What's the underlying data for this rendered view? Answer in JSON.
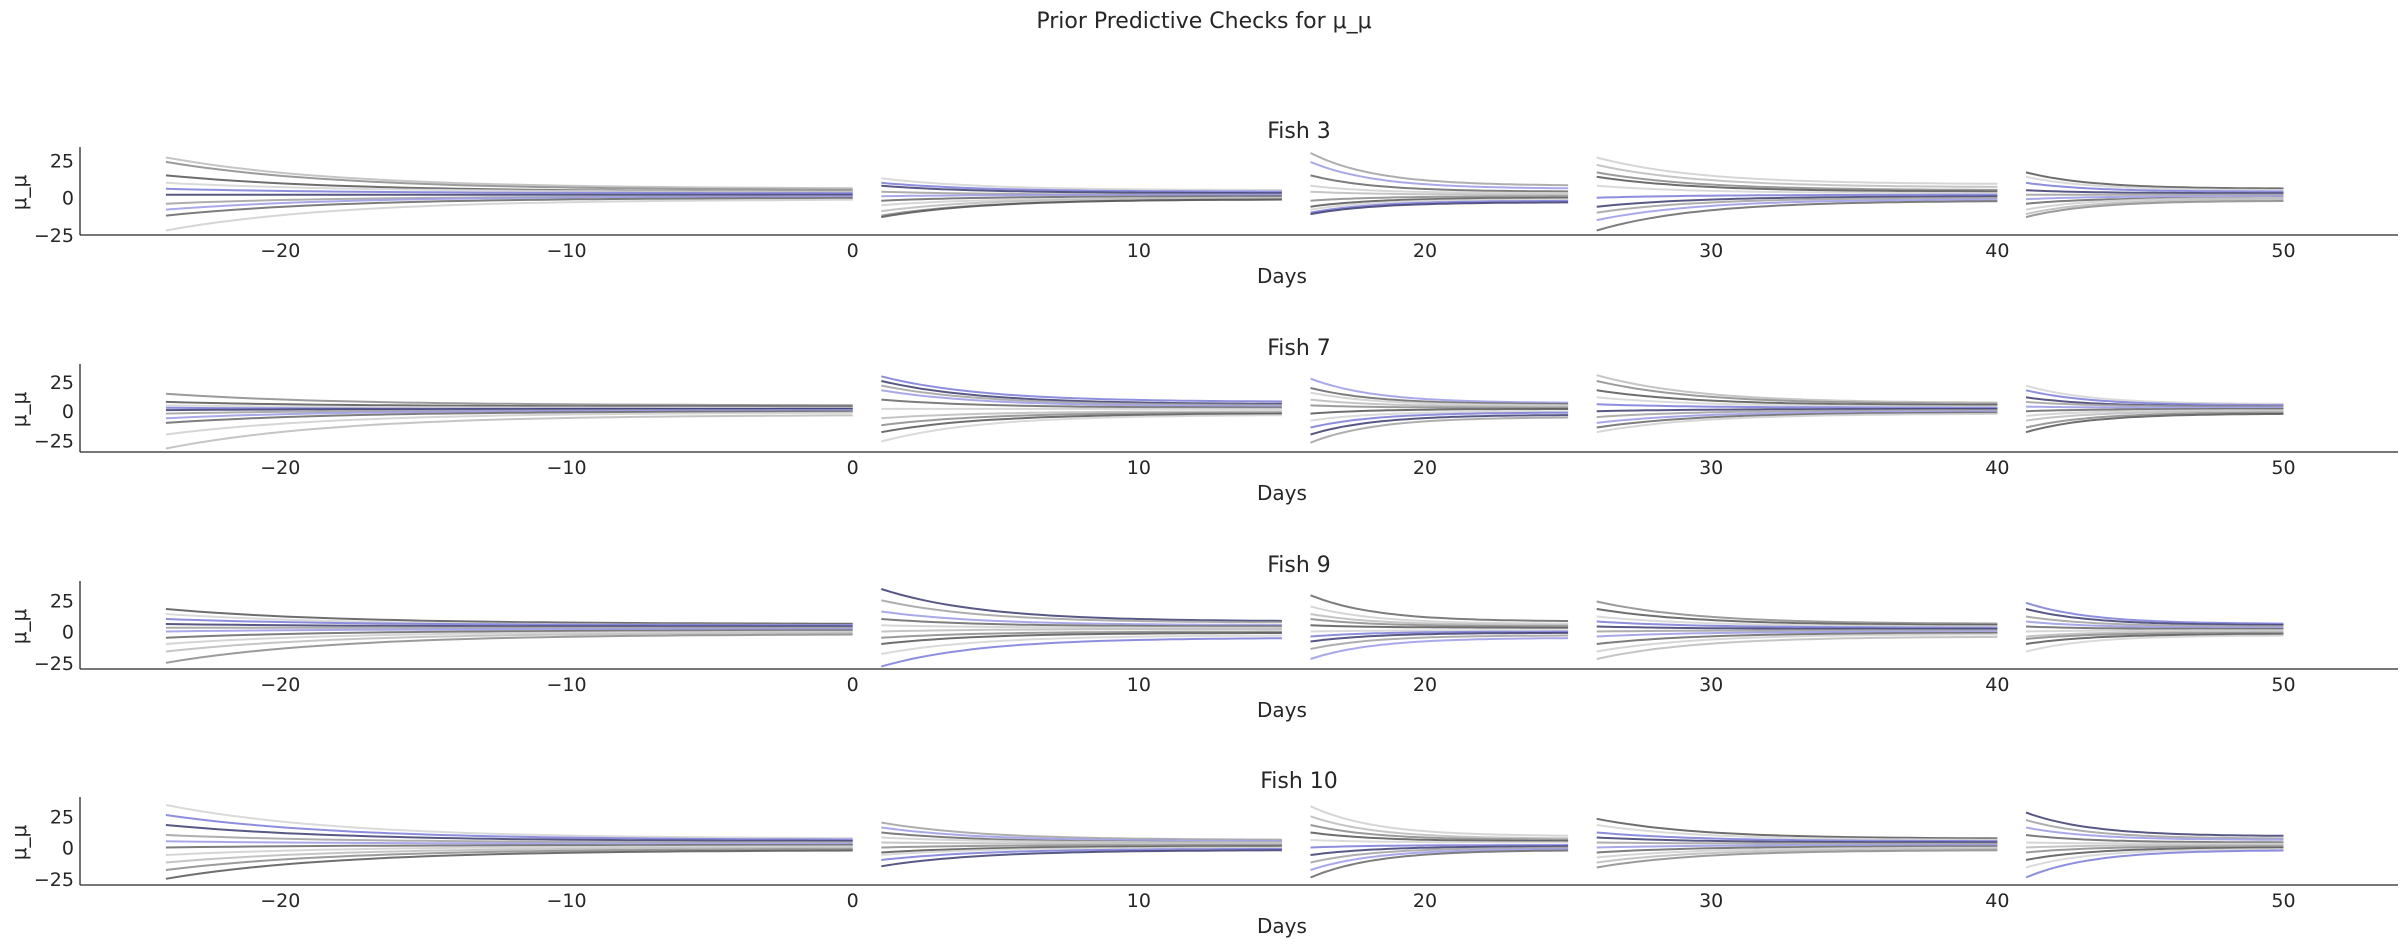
{
  "chart_data": {
    "type": "line",
    "title": "Prior Predictive Checks for μ_μ",
    "xlabel": "Days",
    "ylabel": "μ_μ",
    "xlim": [
      -27,
      54
    ],
    "x_ticks": [
      "−20",
      "−10",
      "0",
      "10",
      "20",
      "30",
      "40",
      "50"
    ],
    "x_tick_values": [
      -20,
      -10,
      0,
      10,
      20,
      30,
      40,
      50
    ],
    "segments": [
      [
        -24,
        0
      ],
      [
        1,
        15
      ],
      [
        16,
        25
      ],
      [
        26,
        40
      ],
      [
        41,
        50
      ]
    ],
    "grid": false,
    "line_colors": [
      "#bbbbbb",
      "#8a8a8a",
      "#555555",
      "#d4d4d4",
      "#7a7ad8",
      "#3b3b6e",
      "#a0a0a0",
      "#9a9ae6",
      "#666666",
      "#cfcfcf"
    ],
    "panels": [
      {
        "title": "Fish 3",
        "ylim": [
          -25,
          32
        ],
        "y_ticks": [
          "25",
          "0",
          "−25"
        ],
        "y_tick_values": [
          25,
          0,
          -25
        ],
        "segments": [
          {
            "start": [
              27,
              24,
              15,
              10,
              6,
              2,
              -4,
              -8,
              -12,
              -22
            ],
            "end": [
              6,
              5,
              4,
              4,
              3,
              2,
              1,
              1,
              0,
              -1
            ]
          },
          {
            "start": [
              13,
              10,
              8,
              4,
              1,
              -2,
              -5,
              -9,
              -12,
              -13
            ],
            "end": [
              5,
              4,
              3,
              2,
              2,
              1,
              0,
              0,
              -1,
              -1
            ]
          },
          {
            "start": [
              30,
              24,
              15,
              8,
              4,
              -2,
              -6,
              -8,
              -10,
              -11
            ],
            "end": [
              8,
              6,
              4,
              3,
              2,
              1,
              0,
              -1,
              -2,
              -3
            ]
          },
          {
            "start": [
              27,
              22,
              17,
              14,
              8,
              0,
              -6,
              -10,
              -15,
              -22
            ],
            "end": [
              9,
              7,
              5,
              4,
              3,
              2,
              1,
              0,
              -1,
              -2
            ]
          },
          {
            "start": [
              17,
              14,
              10,
              5,
              2,
              -1,
              -4,
              -8,
              -11,
              -13
            ],
            "end": [
              6,
              5,
              4,
              3,
              2,
              1,
              0,
              0,
              -1,
              -2
            ]
          }
        ]
      },
      {
        "title": "Fish 7",
        "ylim": [
          -35,
          38
        ],
        "y_ticks": [
          "25",
          "0",
          "−25"
        ],
        "y_tick_values": [
          25,
          0,
          -25
        ],
        "segments": [
          {
            "start": [
              15,
              8,
              5,
              3,
              1,
              -2,
              -6,
              -10,
              -20,
              -32
            ],
            "end": [
              5,
              4,
              3,
              2,
              2,
              1,
              1,
              0,
              -1,
              -3
            ]
          },
          {
            "start": [
              30,
              26,
              22,
              18,
              10,
              2,
              -6,
              -12,
              -18,
              -26
            ],
            "end": [
              8,
              6,
              5,
              4,
              3,
              2,
              0,
              -1,
              -2,
              -3
            ]
          },
          {
            "start": [
              28,
              20,
              16,
              10,
              5,
              -2,
              -8,
              -14,
              -20,
              -27
            ],
            "end": [
              7,
              6,
              5,
              4,
              3,
              2,
              0,
              -1,
              -3,
              -5
            ]
          },
          {
            "start": [
              31,
              26,
              18,
              12,
              6,
              0,
              -5,
              -10,
              -14,
              -18
            ],
            "end": [
              7,
              6,
              5,
              4,
              3,
              2,
              1,
              0,
              -1,
              -2
            ]
          },
          {
            "start": [
              22,
              18,
              12,
              8,
              4,
              0,
              -4,
              -8,
              -14,
              -18
            ],
            "end": [
              6,
              5,
              4,
              4,
              3,
              2,
              1,
              0,
              -1,
              -2
            ]
          }
        ]
      },
      {
        "title": "Fish 9",
        "ylim": [
          -30,
          38
        ],
        "y_ticks": [
          "25",
          "0",
          "−25"
        ],
        "y_tick_values": [
          25,
          0,
          -25
        ],
        "segments": [
          {
            "start": [
              18,
              14,
              10,
              6,
              3,
              0,
              -5,
              -10,
              -16,
              -25
            ],
            "end": [
              6,
              5,
              5,
              4,
              3,
              2,
              1,
              0,
              -1,
              -2
            ]
          },
          {
            "start": [
              34,
              25,
              16,
              10,
              5,
              0,
              -5,
              -10,
              -18,
              -28
            ],
            "end": [
              8,
              7,
              5,
              4,
              3,
              2,
              0,
              -1,
              -3,
              -5
            ]
          },
          {
            "start": [
              29,
              20,
              14,
              10,
              5,
              0,
              -4,
              -8,
              -14,
              -22
            ],
            "end": [
              8,
              6,
              5,
              4,
              3,
              1,
              0,
              -1,
              -3,
              -5
            ]
          },
          {
            "start": [
              24,
              18,
              12,
              8,
              4,
              0,
              -4,
              -10,
              -16,
              -22
            ],
            "end": [
              6,
              5,
              4,
              3,
              2,
              1,
              0,
              -1,
              -2,
              -4
            ]
          },
          {
            "start": [
              23,
              18,
              12,
              8,
              4,
              0,
              -4,
              -6,
              -10,
              -16
            ],
            "end": [
              6,
              5,
              4,
              3,
              2,
              1,
              0,
              -1,
              -2,
              -3
            ]
          }
        ]
      },
      {
        "title": "Fish 10",
        "ylim": [
          -30,
          38
        ],
        "y_ticks": [
          "25",
          "0",
          "−25"
        ],
        "y_tick_values": [
          25,
          0,
          -25
        ],
        "segments": [
          {
            "start": [
              34,
              26,
              18,
              10,
              5,
              0,
              -6,
              -12,
              -18,
              -25
            ],
            "end": [
              7,
              6,
              5,
              4,
              3,
              2,
              1,
              0,
              -1,
              -2
            ]
          },
          {
            "start": [
              20,
              16,
              12,
              8,
              4,
              0,
              -4,
              -6,
              -10,
              -15
            ],
            "end": [
              6,
              5,
              4,
              4,
              3,
              2,
              1,
              0,
              -1,
              -2
            ]
          },
          {
            "start": [
              33,
              25,
              18,
              12,
              6,
              0,
              -6,
              -12,
              -18,
              -24
            ],
            "end": [
              9,
              7,
              6,
              5,
              4,
              2,
              1,
              0,
              -1,
              -2
            ]
          },
          {
            "start": [
              23,
              18,
              12,
              8,
              4,
              0,
              -4,
              -8,
              -12,
              -16
            ],
            "end": [
              7,
              6,
              5,
              4,
              3,
              2,
              1,
              0,
              -1,
              -2
            ]
          },
          {
            "start": [
              28,
              22,
              16,
              10,
              4,
              0,
              -4,
              -10,
              -16,
              -24
            ],
            "end": [
              9,
              7,
              6,
              4,
              3,
              2,
              1,
              0,
              -1,
              -2
            ]
          }
        ]
      }
    ]
  }
}
